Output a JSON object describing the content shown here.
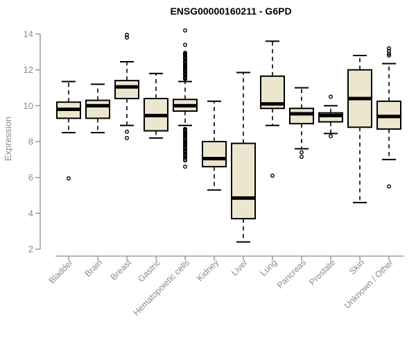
{
  "chart_data": {
    "type": "boxplot",
    "title": "ENSG00000160211 - G6PD",
    "xlabel": "",
    "ylabel": "Expression",
    "ylim": [
      2,
      14
    ],
    "yticks": [
      2,
      4,
      6,
      8,
      10,
      12,
      14
    ],
    "grid": false,
    "legend": false,
    "categories": [
      "Bladder",
      "Brain",
      "Breast",
      "Gastric",
      "Hematopoietic cells",
      "Kidney",
      "Liver",
      "Lung",
      "Pancreas",
      "Prostate",
      "Skin",
      "Unknown / Other"
    ],
    "series": [
      {
        "name": "Bladder",
        "whisker_low": 8.5,
        "q1": 9.3,
        "median": 9.8,
        "q3": 10.2,
        "whisker_high": 11.35,
        "outliers": [
          5.95
        ]
      },
      {
        "name": "Brain",
        "whisker_low": 8.5,
        "q1": 9.3,
        "median": 10.0,
        "q3": 10.3,
        "whisker_high": 11.2,
        "outliers": []
      },
      {
        "name": "Breast",
        "whisker_low": 8.9,
        "q1": 10.4,
        "median": 11.05,
        "q3": 11.4,
        "whisker_high": 12.45,
        "outliers": [
          13.95,
          13.8,
          8.55,
          8.2
        ]
      },
      {
        "name": "Gastric",
        "whisker_low": 8.2,
        "q1": 8.6,
        "median": 9.45,
        "q3": 10.4,
        "whisker_high": 11.8,
        "outliers": []
      },
      {
        "name": "Hematopoietic cells",
        "whisker_low": 8.9,
        "q1": 9.7,
        "median": 10.0,
        "q3": 10.35,
        "whisker_high": 11.35,
        "outliers": [
          14.2,
          13.4,
          12.95,
          12.9,
          12.85,
          12.8,
          12.7,
          12.65,
          12.6,
          12.5,
          12.45,
          12.4,
          12.3,
          12.25,
          12.2,
          12.15,
          12.1,
          12.0,
          11.95,
          11.9,
          11.8,
          11.75,
          11.7,
          11.6,
          11.55,
          11.5,
          8.7,
          8.65,
          8.6,
          8.5,
          8.45,
          8.4,
          8.35,
          8.3,
          8.2,
          8.15,
          8.1,
          8.0,
          7.95,
          7.9,
          7.85,
          7.8,
          7.7,
          7.65,
          7.6,
          7.5,
          7.45,
          7.4,
          7.3,
          7.25,
          7.2,
          7.1,
          7.0,
          6.95,
          6.6
        ]
      },
      {
        "name": "Kidney",
        "whisker_low": 5.3,
        "q1": 6.6,
        "median": 7.05,
        "q3": 8.0,
        "whisker_high": 10.25,
        "outliers": []
      },
      {
        "name": "Liver",
        "whisker_low": 2.4,
        "q1": 3.7,
        "median": 4.85,
        "q3": 7.9,
        "whisker_high": 11.85,
        "outliers": []
      },
      {
        "name": "Lung",
        "whisker_low": 8.9,
        "q1": 9.85,
        "median": 10.1,
        "q3": 11.65,
        "whisker_high": 13.6,
        "outliers": [
          6.1
        ]
      },
      {
        "name": "Pancreas",
        "whisker_low": 7.6,
        "q1": 9.0,
        "median": 9.55,
        "q3": 9.85,
        "whisker_high": 11.0,
        "outliers": [
          7.4,
          7.15
        ]
      },
      {
        "name": "Prostate",
        "whisker_low": 8.45,
        "q1": 9.1,
        "median": 9.45,
        "q3": 9.6,
        "whisker_high": 10.0,
        "outliers": [
          10.5,
          8.3
        ]
      },
      {
        "name": "Skin",
        "whisker_low": 4.6,
        "q1": 8.8,
        "median": 10.4,
        "q3": 12.0,
        "whisker_high": 12.8,
        "outliers": []
      },
      {
        "name": "Unknown / Other",
        "whisker_low": 7.0,
        "q1": 8.7,
        "median": 9.4,
        "q3": 10.25,
        "whisker_high": 12.35,
        "outliers": [
          13.2,
          13.05,
          12.9,
          12.8,
          5.5
        ]
      }
    ],
    "colors": {
      "box_fill": "#ECE6CF",
      "box_border": "#000000",
      "median": "#000000",
      "whisker": "#000000",
      "outlier": "#000000",
      "axis": "#8a8a8a",
      "tick_label": "#8a8a8a",
      "title": "#000000"
    }
  }
}
